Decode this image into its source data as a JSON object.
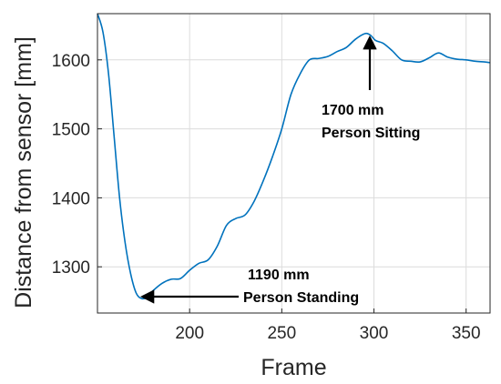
{
  "chart_data": {
    "type": "line",
    "title": "",
    "xlabel": "Frame",
    "ylabel": "Distance from sensor [mm]",
    "xlim": [
      150,
      363
    ],
    "ylim": [
      1233,
      1667
    ],
    "xticks": [
      200,
      250,
      300,
      350
    ],
    "yticks": [
      1300,
      1400,
      1500,
      1600
    ],
    "grid": true,
    "series": [
      {
        "color": "#0072BD",
        "x": [
          150,
          153,
          156,
          159,
          162,
          165,
          168,
          171,
          174,
          177,
          180,
          185,
          190,
          195,
          200,
          205,
          210,
          215,
          220,
          225,
          230,
          235,
          240,
          245,
          250,
          255,
          260,
          265,
          270,
          275,
          280,
          285,
          290,
          295,
          298,
          301,
          305,
          310,
          315,
          320,
          325,
          330,
          335,
          340,
          345,
          350,
          355,
          360,
          363
        ],
        "y": [
          1667,
          1640,
          1580,
          1490,
          1400,
          1335,
          1290,
          1262,
          1254,
          1256,
          1265,
          1276,
          1282,
          1283,
          1295,
          1305,
          1310,
          1330,
          1360,
          1370,
          1375,
          1395,
          1425,
          1460,
          1500,
          1550,
          1580,
          1600,
          1602,
          1605,
          1612,
          1618,
          1630,
          1638,
          1636,
          1628,
          1624,
          1613,
          1600,
          1598,
          1597,
          1603,
          1610,
          1604,
          1601,
          1600,
          1598,
          1597,
          1596
        ]
      }
    ],
    "annotations": [
      {
        "line1": "1700 mm",
        "line2": "Person Sitting"
      },
      {
        "line1": "1190 mm",
        "line2": "Person Standing"
      }
    ]
  }
}
